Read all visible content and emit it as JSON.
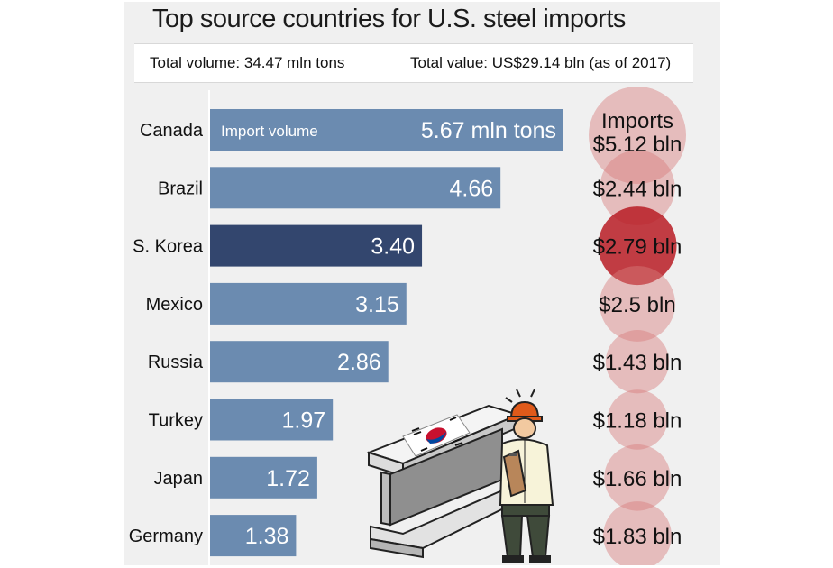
{
  "colors": {
    "bar": "#6b8bb0",
    "bar_highlight": "#33466e",
    "bubble": "#d67c7c",
    "bubble_highlight": "#b81c24",
    "panel": "#f0f0f0"
  },
  "header": {
    "title": "Top source countries for U.S. steel imports",
    "total_volume": "Total volume: 34.47 mln tons",
    "total_value": "Total value: US$29.14 bln (as of 2017)"
  },
  "chart_data": {
    "type": "bar",
    "orientation": "horizontal",
    "title": "Top source countries for U.S. steel imports",
    "series_label": "Import volume",
    "unit": "mln tons",
    "value_label_header": "Imports",
    "highlight": "S. Korea",
    "categories": [
      "Canada",
      "Brazil",
      "S. Korea",
      "Mexico",
      "Russia",
      "Turkey",
      "Japan",
      "Germany"
    ],
    "values": [
      5.67,
      4.66,
      3.4,
      3.15,
      2.86,
      1.97,
      1.72,
      1.38
    ],
    "value_labels": [
      "5.67 mln tons",
      "4.66",
      "3.40",
      "3.15",
      "2.86",
      "1.97",
      "1.72",
      "1.38"
    ],
    "import_values_bln_usd": [
      5.12,
      2.44,
      2.79,
      2.5,
      1.43,
      1.18,
      1.66,
      1.83
    ],
    "import_value_labels": [
      "$5.12 bln",
      "$2.44 bln",
      "$2.79 bln",
      "$2.5 bln",
      "$1.43 bln",
      "$1.18 bln",
      "$1.66 bln",
      "$1.83 bln"
    ]
  },
  "illustration": {
    "icons": [
      "steel-beam-icon",
      "korean-flag-icon",
      "worker-with-clipboard-icon"
    ]
  }
}
